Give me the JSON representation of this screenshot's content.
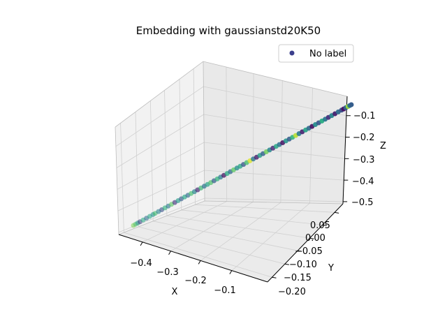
{
  "chart_data": {
    "type": "scatter",
    "title": "Embedding with gaussianstd20K50",
    "xlabel": "X",
    "ylabel": "Y",
    "zlabel": "Z",
    "xticks": [
      "−0.4",
      "−0.3",
      "−0.2",
      "−0.1"
    ],
    "yticks": [
      "−0.20",
      "−0.15",
      "−0.10",
      "−0.05",
      "0.00",
      "0.05"
    ],
    "zticks": [
      "−0.5",
      "−0.4",
      "−0.3",
      "−0.2",
      "−0.1"
    ],
    "legend": {
      "label": "No label",
      "placement": "top-right",
      "color": "#3b3f8c"
    },
    "colormap": "viridis",
    "grid": true,
    "points": [
      {
        "t": 0.0,
        "c": 0.8
      },
      {
        "t": 0.01,
        "c": 0.72
      },
      {
        "t": 0.02,
        "c": 0.55
      },
      {
        "t": 0.03,
        "c": 0.2
      },
      {
        "t": 0.045,
        "c": 0.62
      },
      {
        "t": 0.06,
        "c": 0.35
      },
      {
        "t": 0.075,
        "c": 0.6
      },
      {
        "t": 0.09,
        "c": 0.5
      },
      {
        "t": 0.1,
        "c": 0.7
      },
      {
        "t": 0.115,
        "c": 0.45
      },
      {
        "t": 0.13,
        "c": 0.25
      },
      {
        "t": 0.145,
        "c": 0.65
      },
      {
        "t": 0.16,
        "c": 0.4
      },
      {
        "t": 0.175,
        "c": 0.75
      },
      {
        "t": 0.19,
        "c": 0.15
      },
      {
        "t": 0.205,
        "c": 0.55
      },
      {
        "t": 0.22,
        "c": 0.3
      },
      {
        "t": 0.235,
        "c": 0.6
      },
      {
        "t": 0.25,
        "c": 0.35
      },
      {
        "t": 0.265,
        "c": 0.7
      },
      {
        "t": 0.28,
        "c": 0.45
      },
      {
        "t": 0.295,
        "c": 0.1
      },
      {
        "t": 0.31,
        "c": 0.68
      },
      {
        "t": 0.325,
        "c": 0.38
      },
      {
        "t": 0.34,
        "c": 0.58
      },
      {
        "t": 0.355,
        "c": 0.72
      },
      {
        "t": 0.37,
        "c": 0.3
      },
      {
        "t": 0.385,
        "c": 0.65
      },
      {
        "t": 0.4,
        "c": 0.42
      },
      {
        "t": 0.415,
        "c": 0.05
      },
      {
        "t": 0.43,
        "c": 0.62
      },
      {
        "t": 0.445,
        "c": 0.35
      },
      {
        "t": 0.46,
        "c": 0.75
      },
      {
        "t": 0.475,
        "c": 0.48
      },
      {
        "t": 0.49,
        "c": 0.6
      },
      {
        "t": 0.505,
        "c": 0.28
      },
      {
        "t": 0.52,
        "c": 0.7
      },
      {
        "t": 0.535,
        "c": 0.95
      },
      {
        "t": 0.55,
        "c": 0.4
      },
      {
        "t": 0.565,
        "c": 0.08
      },
      {
        "t": 0.58,
        "c": 0.55
      },
      {
        "t": 0.595,
        "c": 0.32
      },
      {
        "t": 0.61,
        "c": 0.78
      },
      {
        "t": 0.625,
        "c": 0.45
      },
      {
        "t": 0.64,
        "c": 0.12
      },
      {
        "t": 0.655,
        "c": 0.6
      },
      {
        "t": 0.67,
        "c": 0.38
      },
      {
        "t": 0.685,
        "c": 0.05
      },
      {
        "t": 0.7,
        "c": 0.52
      },
      {
        "t": 0.715,
        "c": 0.3
      },
      {
        "t": 0.73,
        "c": 0.65
      },
      {
        "t": 0.745,
        "c": 0.9
      },
      {
        "t": 0.76,
        "c": 0.42
      },
      {
        "t": 0.775,
        "c": 0.1
      },
      {
        "t": 0.79,
        "c": 0.58
      },
      {
        "t": 0.805,
        "c": 0.35
      },
      {
        "t": 0.82,
        "c": 0.05
      },
      {
        "t": 0.835,
        "c": 0.48
      },
      {
        "t": 0.85,
        "c": 0.28
      },
      {
        "t": 0.865,
        "c": 0.62
      },
      {
        "t": 0.88,
        "c": 0.4
      },
      {
        "t": 0.895,
        "c": 0.15
      },
      {
        "t": 0.91,
        "c": 0.45
      },
      {
        "t": 0.925,
        "c": 0.1
      },
      {
        "t": 0.94,
        "c": 0.35
      },
      {
        "t": 0.955,
        "c": 0.25
      },
      {
        "t": 0.965,
        "c": 0.05
      },
      {
        "t": 0.975,
        "c": 0.32
      },
      {
        "t": 0.985,
        "c": 0.85
      },
      {
        "t": 0.993,
        "c": 0.38
      },
      {
        "t": 1.0,
        "c": 0.3
      }
    ]
  }
}
